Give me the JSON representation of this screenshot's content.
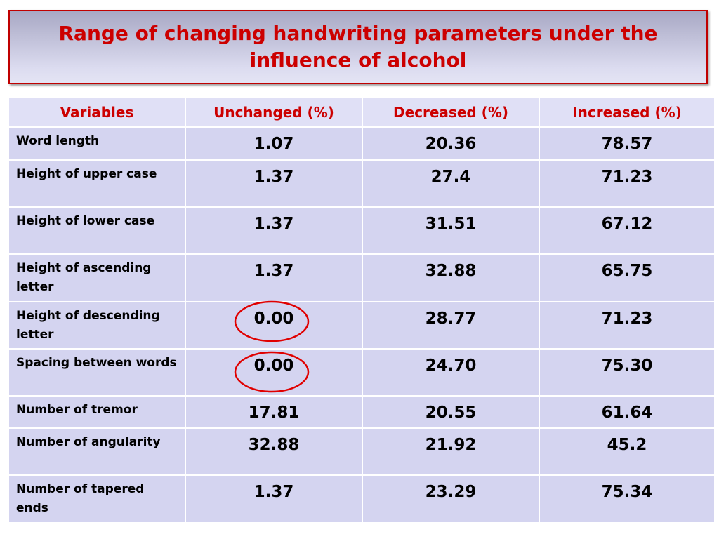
{
  "header": {
    "title": "Range of changing handwriting parameters under the influence of alcohol"
  },
  "table": {
    "columns": [
      "Variables",
      "Unchanged (%)",
      "Decreased (%)",
      "Increased (%)"
    ],
    "rows": [
      [
        "Word length",
        "1.07",
        "20.36",
        "78.57"
      ],
      [
        "Height of upper case",
        "1.37",
        "27.4",
        "71.23"
      ],
      [
        "Height of lower case",
        "1.37",
        "31.51",
        "67.12"
      ],
      [
        "Height of ascending letter",
        "1.37",
        "32.88",
        "65.75"
      ],
      [
        "Height of descending letter",
        "0.00",
        "28.77",
        "71.23"
      ],
      [
        "Spacing between words",
        "0.00",
        "24.70",
        "75.30"
      ],
      [
        "Number of tremor",
        "17.81",
        "20.55",
        "61.64"
      ],
      [
        "Number of angularity",
        "32.88",
        "21.92",
        "45.2"
      ],
      [
        "Number of tapered ends",
        "1.37",
        "23.29",
        "75.34"
      ]
    ]
  }
}
